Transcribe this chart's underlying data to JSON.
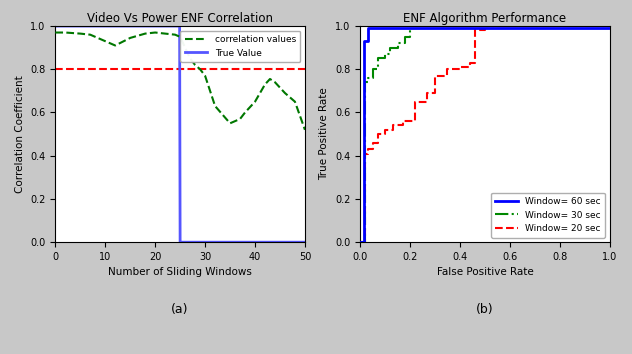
{
  "left_title": "Video Vs Power ENF Correlation",
  "left_xlabel": "Number of Sliding Windows",
  "left_ylabel": "Correlation Coefficient",
  "left_xlim": [
    0,
    50
  ],
  "left_ylim": [
    0.0,
    1.0
  ],
  "threshold_value": 0.8,
  "threshold_color": "#ff0000",
  "true_value_color": "#5555ff",
  "corr_color": "#007700",
  "right_title": "ENF Algorithm Performance",
  "right_xlabel": "False Positive Rate",
  "right_ylabel": "True Positive Rate",
  "right_xlim": [
    0.0,
    1.0
  ],
  "right_ylim": [
    0.0,
    1.0
  ],
  "window20_color": "#ff0000",
  "window30_color": "#008800",
  "window60_color": "#0000ff",
  "caption_a": "(a)",
  "caption_b": "(b)"
}
